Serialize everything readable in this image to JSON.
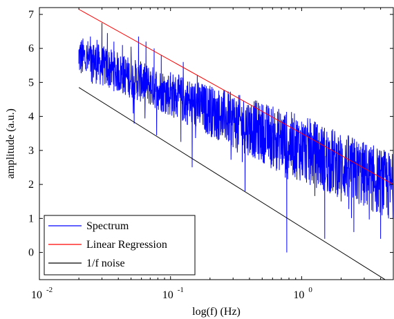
{
  "chart_data": {
    "type": "line",
    "title": "",
    "xlabel": "log(f) (Hz)",
    "ylabel": "amplitude (a.u.)",
    "xscale": "log",
    "xlim": [
      0.01,
      5.0
    ],
    "ylim": [
      -0.8,
      7.2
    ],
    "grid": false,
    "legend_position": "bottom-left",
    "x_ticks": [
      {
        "value": 0.01,
        "base": "10",
        "exp": "-2"
      },
      {
        "value": 0.1,
        "base": "10",
        "exp": "-1"
      },
      {
        "value": 1,
        "base": "10",
        "exp": "0"
      }
    ],
    "y_ticks": [
      {
        "value": 0,
        "label": "0"
      },
      {
        "value": 1,
        "label": "1"
      },
      {
        "value": 2,
        "label": "2"
      },
      {
        "value": 3,
        "label": "3"
      },
      {
        "value": 4,
        "label": "4"
      },
      {
        "value": 5,
        "label": "5"
      },
      {
        "value": 6,
        "label": "6"
      },
      {
        "value": 7,
        "label": "7"
      }
    ],
    "series": [
      {
        "name": "Spectrum",
        "color": "#0000ff",
        "kind": "noisy-spectrum",
        "x_range": [
          0.02,
          5.0
        ],
        "trend": {
          "intercept_at_1hz": 3.05,
          "slope_per_decade": -1.6
        },
        "spread": 0.55,
        "x": [
          0.02,
          0.0215,
          0.023,
          0.0245,
          0.026,
          0.0275,
          0.029,
          0.03,
          0.031,
          0.033,
          0.035,
          0.037,
          0.04,
          0.043,
          0.047,
          0.05,
          0.053,
          0.057,
          0.06,
          0.065,
          0.07,
          0.075,
          0.08,
          0.085,
          0.09,
          0.1,
          0.11,
          0.12,
          0.125,
          0.15,
          0.16,
          0.18,
          0.2,
          0.24,
          0.3,
          0.35,
          0.37,
          0.4,
          0.5,
          0.55,
          0.65,
          0.75,
          0.77,
          0.85,
          1.0,
          1.2,
          1.5,
          1.8,
          2.0,
          2.5,
          3.0,
          3.5,
          4.0,
          4.6,
          5.0
        ],
        "values": [
          5.55,
          6.05,
          5.85,
          6.35,
          6.1,
          6.25,
          5.4,
          6.75,
          5.85,
          6.45,
          5.6,
          6.2,
          5.45,
          6.1,
          5.3,
          6.05,
          5.0,
          6.35,
          5.55,
          6.2,
          5.2,
          6.0,
          4.9,
          5.8,
          4.7,
          5.3,
          4.8,
          3.25,
          5.6,
          4.3,
          5.2,
          4.1,
          4.9,
          4.0,
          4.5,
          3.7,
          1.8,
          4.1,
          3.5,
          3.9,
          3.0,
          2.2,
          0.0,
          3.4,
          2.7,
          2.2,
          0.4,
          2.5,
          1.5,
          0.6,
          2.3,
          1.2,
          0.4,
          1.0,
          1.8
        ]
      },
      {
        "name": "Linear Regression",
        "color": "#ff0000",
        "kind": "line",
        "x": [
          0.02,
          5.0
        ],
        "values": [
          7.15,
          2.0
        ]
      },
      {
        "name": "1/f noise",
        "color": "#000000",
        "kind": "line",
        "x": [
          0.02,
          5.0
        ],
        "values": [
          4.85,
          -0.95
        ]
      }
    ]
  }
}
